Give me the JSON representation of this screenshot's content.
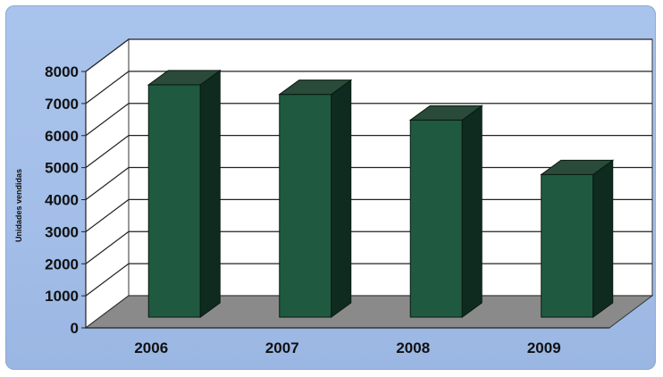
{
  "chart_data": {
    "type": "bar",
    "categories": [
      "2006",
      "2007",
      "2008",
      "2009"
    ],
    "values": [
      7250,
      6950,
      6150,
      4450
    ],
    "title": "",
    "xlabel": "",
    "ylabel": "Unidades vendidas",
    "ylim": [
      0,
      8000
    ],
    "yticks": [
      "0",
      "1000",
      "2000",
      "3000",
      "4000",
      "5000",
      "6000",
      "7000",
      "8000"
    ],
    "grid": true,
    "legend": "none",
    "colors": {
      "bar_front": "#1f5a40",
      "bar_side": "#0f2a1e",
      "bar_top": "#2a4a3a",
      "floor": "#8a8a8a",
      "wall": "#ffffff",
      "panel": "#a6c1ea"
    }
  }
}
